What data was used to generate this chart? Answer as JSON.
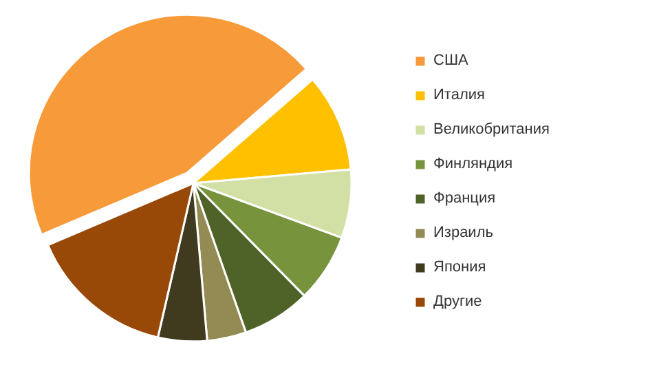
{
  "chart_data": {
    "type": "pie",
    "categories": [
      "США",
      "Италия",
      "Великобритания",
      "Финляндия",
      "Франция",
      "Израиль",
      "Япония",
      "Другие"
    ],
    "values": [
      45,
      10,
      7,
      7,
      7,
      4,
      5,
      15
    ],
    "colors": [
      "#f79a3a",
      "#ffc000",
      "#d2dfa5",
      "#77933c",
      "#4f6228",
      "#948a54",
      "#403a1e",
      "#984807"
    ],
    "legend": "right"
  }
}
